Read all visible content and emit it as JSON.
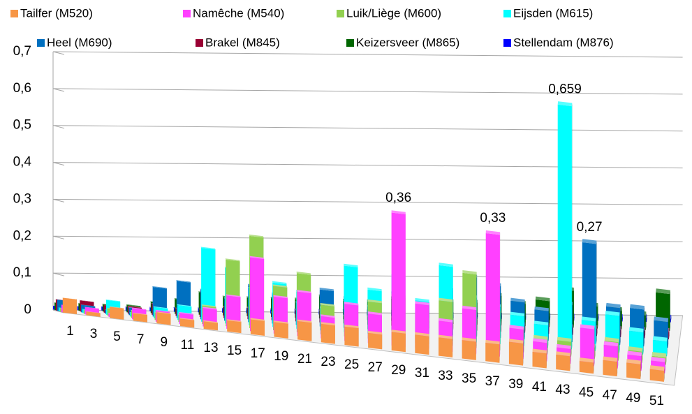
{
  "chart_data": {
    "type": "bar3d",
    "categories": [
      1,
      null,
      3,
      null,
      5,
      null,
      7,
      null,
      9,
      null,
      11,
      null,
      13,
      null,
      15,
      null,
      17,
      null,
      19,
      null,
      21,
      null,
      23,
      null,
      25,
      null,
      27,
      null,
      29,
      null,
      31,
      null,
      33,
      null,
      35,
      null,
      37,
      null,
      39,
      null,
      41,
      null,
      43,
      null,
      45,
      null,
      47,
      null,
      49,
      null,
      51,
      null
    ],
    "ylim": [
      0,
      0.7
    ],
    "yticks": [
      0,
      {
        "value": 0.1,
        "label": "0,1"
      },
      {
        "value": 0.2,
        "label": "0,2"
      },
      {
        "value": 0.3,
        "label": "0,3"
      },
      {
        "value": 0.4,
        "label": "0,4"
      },
      {
        "value": 0.5,
        "label": "0,5"
      },
      {
        "value": 0.6,
        "label": "0,6"
      },
      {
        "value": 0.7,
        "label": "0,7"
      }
    ],
    "grid": true,
    "legend": "top",
    "series": [
      {
        "name": "Tailfer (M520)",
        "color": "#f79646",
        "values": [
          0.04,
          null,
          0.01,
          null,
          0.03,
          null,
          0.02,
          null,
          0.03,
          null,
          0.02,
          null,
          0.02,
          null,
          0.03,
          null,
          0.04,
          null,
          0.04,
          null,
          0.05,
          null,
          0.05,
          null,
          0.05,
          null,
          0.04,
          null,
          0.05,
          null,
          0.05,
          null,
          0.05,
          null,
          0.05,
          null,
          0.05,
          null,
          0.06,
          null,
          0.04,
          null,
          0.04,
          null,
          0.03,
          null,
          0.04,
          null,
          0.04,
          null,
          0.03,
          null
        ]
      },
      {
        "name": "Namêche (M540)",
        "color": "#ff40ff",
        "values": [
          0.02,
          null,
          0.02,
          null,
          0.01,
          null,
          0.03,
          null,
          0.03,
          null,
          0.03,
          null,
          0.05,
          null,
          0.09,
          null,
          0.2,
          null,
          0.1,
          null,
          0.12,
          null,
          0.06,
          null,
          0.1,
          null,
          0.08,
          null,
          0.36,
          null,
          0.12,
          null,
          0.08,
          null,
          0.12,
          null,
          0.33,
          null,
          0.08,
          null,
          0.05,
          null,
          0.04,
          null,
          0.1,
          null,
          0.06,
          null,
          0.04,
          null,
          0.03,
          null
        ],
        "value_labels": [
          null,
          null,
          null,
          null,
          null,
          null,
          null,
          null,
          null,
          null,
          null,
          null,
          null,
          null,
          null,
          null,
          null,
          null,
          null,
          null,
          null,
          null,
          null,
          null,
          null,
          null,
          null,
          null,
          "0,36",
          null,
          null,
          null,
          null,
          null,
          null,
          null,
          "0,33",
          null,
          null,
          null,
          null,
          null,
          null,
          null,
          null,
          null,
          null,
          null,
          null,
          null,
          null,
          null
        ]
      },
      {
        "name": "Luik/Liège (M600)",
        "color": "#92d050",
        "values": [
          0.01,
          null,
          0.01,
          null,
          0.02,
          null,
          0.02,
          null,
          0.02,
          null,
          0.02,
          null,
          0.05,
          null,
          0.18,
          null,
          0.25,
          null,
          0.12,
          null,
          0.16,
          null,
          0.08,
          null,
          0.06,
          null,
          0.1,
          null,
          0.12,
          null,
          0.08,
          null,
          0.12,
          null,
          0.2,
          null,
          0.1,
          null,
          0.06,
          null,
          0.04,
          null,
          0.04,
          null,
          0.03,
          null,
          0.05,
          null,
          0.03,
          null,
          0.02,
          null
        ]
      },
      {
        "name": "Eijsden (M615)",
        "color": "#00ffff",
        "values": [
          0.01,
          null,
          0.01,
          null,
          0.04,
          null,
          0.01,
          null,
          0.03,
          null,
          0.04,
          null,
          0.2,
          null,
          0.15,
          null,
          0.1,
          null,
          0.12,
          null,
          0.1,
          null,
          0.06,
          null,
          0.18,
          null,
          0.12,
          null,
          0.16,
          null,
          0.1,
          null,
          0.2,
          null,
          0.12,
          null,
          0.1,
          null,
          0.08,
          null,
          0.06,
          null,
          0.659,
          null,
          0.08,
          null,
          0.1,
          null,
          0.06,
          null,
          0.04,
          null
        ],
        "value_labels": [
          null,
          null,
          null,
          null,
          null,
          null,
          null,
          null,
          null,
          null,
          null,
          null,
          null,
          null,
          null,
          null,
          null,
          null,
          null,
          null,
          null,
          null,
          null,
          null,
          null,
          null,
          null,
          null,
          null,
          null,
          null,
          null,
          null,
          null,
          null,
          null,
          null,
          null,
          null,
          null,
          null,
          null,
          "0,659",
          null,
          null,
          null,
          null,
          null,
          null,
          null,
          null,
          null
        ]
      },
      {
        "name": "Heel (M690)",
        "color": "#0070c0",
        "values": [
          0.03,
          null,
          0.02,
          null,
          0.01,
          null,
          0.02,
          null,
          0.08,
          null,
          0.1,
          null,
          0.08,
          null,
          0.06,
          null,
          0.1,
          null,
          0.08,
          null,
          0.06,
          null,
          0.1,
          null,
          0.08,
          null,
          0.06,
          null,
          0.1,
          null,
          0.08,
          null,
          0.12,
          null,
          0.16,
          null,
          0.14,
          null,
          0.1,
          null,
          0.08,
          null,
          0.1,
          null,
          0.27,
          null,
          0.1,
          null,
          0.1,
          null,
          0.07,
          null
        ],
        "value_labels": [
          null,
          null,
          null,
          null,
          null,
          null,
          null,
          null,
          null,
          null,
          null,
          null,
          null,
          null,
          null,
          null,
          null,
          null,
          null,
          null,
          null,
          null,
          null,
          null,
          null,
          null,
          null,
          null,
          null,
          null,
          null,
          null,
          null,
          null,
          null,
          null,
          null,
          null,
          null,
          null,
          null,
          null,
          null,
          null,
          "0,27",
          null,
          null,
          null,
          null,
          null,
          null,
          null
        ]
      },
      {
        "name": "Brakel (M845)",
        "color": "#990033",
        "values": [
          0.03,
          null,
          0.03,
          null,
          0.02,
          null,
          0.02,
          null,
          0.03,
          null,
          0.02,
          null,
          0.02,
          null,
          0.03,
          null,
          0.03,
          null,
          0.02,
          null,
          0.03,
          null,
          0.03,
          null,
          0.02,
          null,
          0.02,
          null,
          0.02,
          null,
          0.02,
          null,
          0.02,
          null,
          0.03,
          null,
          0.02,
          null,
          0.02,
          null,
          0.02,
          null,
          0.02,
          null,
          0.02,
          null,
          0.02,
          null,
          0.02,
          null,
          0.02,
          null
        ]
      },
      {
        "name": "Keizersveer (M865)",
        "color": "#006600",
        "values": [
          0.02,
          null,
          0.02,
          null,
          0.02,
          null,
          0.02,
          null,
          0.03,
          null,
          0.04,
          null,
          0.06,
          null,
          0.05,
          null,
          0.05,
          null,
          0.05,
          null,
          0.05,
          null,
          0.06,
          null,
          0.05,
          null,
          0.05,
          null,
          0.06,
          null,
          0.05,
          null,
          0.06,
          null,
          0.06,
          null,
          0.08,
          null,
          0.06,
          null,
          0.07,
          null,
          0.1,
          null,
          0.06,
          null,
          0.05,
          null,
          0.04,
          null,
          0.1,
          null
        ]
      },
      {
        "name": "Stellendam (M876)",
        "color": "#0000ff",
        "values": [
          0.01,
          null,
          0.01,
          null,
          0.01,
          null,
          0.01,
          null,
          0.01,
          null,
          0.01,
          null,
          0.01,
          null,
          0.01,
          null,
          0.01,
          null,
          0.01,
          null,
          0.01,
          null,
          0.01,
          null,
          0.01,
          null,
          0.01,
          null,
          0.01,
          null,
          0.01,
          null,
          0.01,
          null,
          0.01,
          null,
          0.01,
          null,
          0.01,
          null,
          0.01,
          null,
          0.01,
          null,
          0.01,
          null,
          0.01,
          null,
          0.01,
          null,
          0.01,
          null
        ]
      }
    ]
  }
}
